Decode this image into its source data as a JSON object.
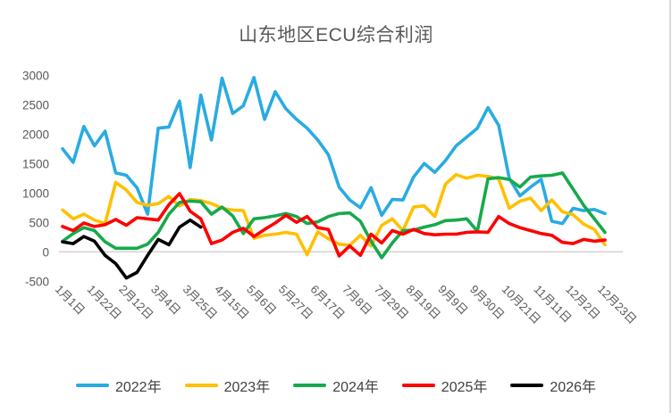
{
  "title": "山东地区ECU综合利润",
  "colors": {
    "axis_text": "#595959",
    "title_text": "#595959",
    "zero_line": "#d5d5d5",
    "legend_text": "#404040",
    "background": "#ffffff"
  },
  "chart_data": {
    "type": "line",
    "title": "山东地区ECU综合利润",
    "xlabel": "",
    "ylabel": "",
    "ylim": [
      -500,
      3000
    ],
    "y_ticks": [
      3000,
      2500,
      2000,
      1500,
      1000,
      500,
      0,
      -500
    ],
    "grid": "zero-line-only",
    "legend_position": "bottom",
    "x_tick_every": 3,
    "x_tick_labels": [
      "1月1日",
      "1月22日",
      "2月12日",
      "3月4日",
      "3月25日",
      "4月15日",
      "5月6日",
      "5月27日",
      "6月17日",
      "7月8日",
      "7月29日",
      "8月19日",
      "9月9日",
      "9月30日",
      "10月21日",
      "11月11日",
      "12月2日",
      "12月23日"
    ],
    "x_unit": "week",
    "series": [
      {
        "name": "2022年",
        "color": "#29abe2",
        "values": [
          1750,
          1520,
          2130,
          1800,
          2050,
          1340,
          1300,
          1090,
          640,
          2100,
          2120,
          2560,
          1430,
          2660,
          1900,
          2950,
          2350,
          2480,
          2960,
          2250,
          2720,
          2430,
          2250,
          2100,
          1900,
          1650,
          1100,
          880,
          750,
          1090,
          620,
          890,
          880,
          1270,
          1500,
          1350,
          1550,
          1800,
          1950,
          2100,
          2450,
          2150,
          1250,
          950,
          1100,
          1230,
          520,
          480,
          740,
          700,
          720,
          650
        ]
      },
      {
        "name": "2023年",
        "color": "#fec001",
        "values": [
          710,
          560,
          640,
          540,
          480,
          1180,
          1050,
          840,
          790,
          820,
          940,
          780,
          890,
          870,
          820,
          740,
          710,
          700,
          230,
          280,
          300,
          330,
          300,
          -50,
          340,
          220,
          130,
          110,
          280,
          100,
          450,
          560,
          360,
          760,
          780,
          600,
          1150,
          1310,
          1250,
          1300,
          1280,
          1240,
          740,
          860,
          910,
          700,
          880,
          680,
          630,
          470,
          380,
          120
        ]
      },
      {
        "name": "2024年",
        "color": "#17a94c",
        "values": [
          180,
          310,
          410,
          360,
          170,
          60,
          60,
          60,
          130,
          330,
          640,
          840,
          860,
          850,
          640,
          760,
          610,
          310,
          560,
          580,
          610,
          650,
          600,
          480,
          510,
          600,
          650,
          660,
          520,
          180,
          -100,
          150,
          360,
          370,
          420,
          460,
          530,
          540,
          560,
          350,
          1240,
          1260,
          1230,
          1100,
          1270,
          1290,
          1300,
          1340,
          1065,
          790,
          560,
          330
        ]
      },
      {
        "name": "2025年",
        "color": "#fe0000",
        "values": [
          430,
          360,
          490,
          430,
          460,
          550,
          450,
          580,
          560,
          540,
          800,
          990,
          690,
          560,
          140,
          200,
          330,
          400,
          260,
          380,
          490,
          620,
          500,
          600,
          410,
          380,
          -70,
          100,
          -60,
          300,
          150,
          360,
          300,
          380,
          310,
          290,
          300,
          300,
          330,
          340,
          330,
          600,
          480,
          410,
          360,
          310,
          280,
          160,
          140,
          210,
          180,
          200
        ]
      },
      {
        "name": "2026年",
        "color": "#000000",
        "values": [
          170,
          140,
          260,
          180,
          -60,
          -200,
          -445,
          -350,
          -60,
          210,
          120,
          420,
          540,
          420
        ]
      }
    ]
  }
}
